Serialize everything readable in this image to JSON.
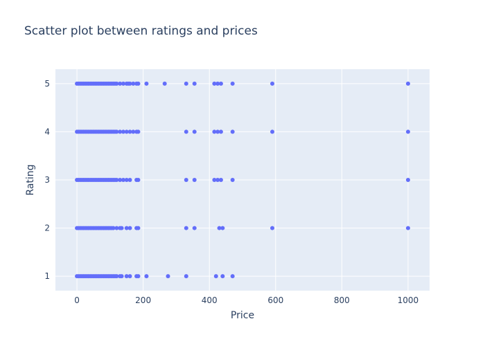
{
  "chart_data": {
    "type": "scatter",
    "title": "Scatter plot between ratings and prices",
    "xlabel": "Price",
    "ylabel": "Rating",
    "xlim": [
      -65,
      1065
    ],
    "ylim": [
      0.7,
      5.3
    ],
    "xticks": [
      0,
      200,
      400,
      600,
      800,
      1000
    ],
    "yticks": [
      1,
      2,
      3,
      4,
      5
    ],
    "xtick_labels": [
      "0",
      "200",
      "400",
      "600",
      "800",
      "1000"
    ],
    "ytick_labels": [
      "1",
      "2",
      "3",
      "4",
      "5"
    ],
    "grid": true,
    "marker_color": "#636efa",
    "plot_bg": "#e5ecf6",
    "x": [
      0,
      5,
      10,
      15,
      20,
      25,
      30,
      35,
      40,
      45,
      50,
      55,
      60,
      65,
      70,
      75,
      80,
      85,
      90,
      95,
      100,
      105,
      110,
      115,
      120,
      130,
      140,
      150,
      155,
      160,
      170,
      180,
      185,
      210,
      265,
      330,
      355,
      415,
      425,
      435,
      470,
      590,
      1000,
      0,
      5,
      10,
      15,
      20,
      25,
      30,
      35,
      40,
      45,
      50,
      55,
      60,
      65,
      70,
      75,
      80,
      85,
      90,
      95,
      100,
      105,
      110,
      115,
      120,
      130,
      140,
      150,
      160,
      170,
      180,
      185,
      330,
      355,
      415,
      425,
      435,
      470,
      590,
      1000,
      0,
      5,
      10,
      15,
      20,
      25,
      30,
      35,
      40,
      45,
      50,
      55,
      60,
      65,
      70,
      75,
      80,
      85,
      90,
      95,
      100,
      105,
      110,
      115,
      120,
      130,
      140,
      150,
      160,
      180,
      185,
      330,
      355,
      415,
      425,
      435,
      470,
      1000,
      0,
      5,
      10,
      15,
      20,
      25,
      30,
      35,
      40,
      45,
      50,
      55,
      60,
      65,
      70,
      75,
      80,
      85,
      90,
      95,
      100,
      105,
      110,
      120,
      130,
      135,
      150,
      160,
      180,
      185,
      330,
      355,
      430,
      440,
      590,
      1000,
      0,
      5,
      10,
      15,
      20,
      25,
      30,
      35,
      40,
      45,
      50,
      55,
      60,
      65,
      70,
      75,
      80,
      85,
      90,
      95,
      100,
      105,
      110,
      115,
      120,
      130,
      135,
      150,
      160,
      180,
      185,
      210,
      275,
      330,
      420,
      440,
      470
    ],
    "y": [
      5,
      5,
      5,
      5,
      5,
      5,
      5,
      5,
      5,
      5,
      5,
      5,
      5,
      5,
      5,
      5,
      5,
      5,
      5,
      5,
      5,
      5,
      5,
      5,
      5,
      5,
      5,
      5,
      5,
      5,
      5,
      5,
      5,
      5,
      5,
      5,
      5,
      5,
      5,
      5,
      5,
      5,
      5,
      4,
      4,
      4,
      4,
      4,
      4,
      4,
      4,
      4,
      4,
      4,
      4,
      4,
      4,
      4,
      4,
      4,
      4,
      4,
      4,
      4,
      4,
      4,
      4,
      4,
      4,
      4,
      4,
      4,
      4,
      4,
      4,
      4,
      4,
      4,
      4,
      4,
      4,
      4,
      4,
      3,
      3,
      3,
      3,
      3,
      3,
      3,
      3,
      3,
      3,
      3,
      3,
      3,
      3,
      3,
      3,
      3,
      3,
      3,
      3,
      3,
      3,
      3,
      3,
      3,
      3,
      3,
      3,
      3,
      3,
      3,
      3,
      3,
      3,
      3,
      3,
      3,
      3,
      2,
      2,
      2,
      2,
      2,
      2,
      2,
      2,
      2,
      2,
      2,
      2,
      2,
      2,
      2,
      2,
      2,
      2,
      2,
      2,
      2,
      2,
      2,
      2,
      2,
      2,
      2,
      2,
      2,
      2,
      2,
      2,
      2,
      2,
      2,
      2,
      1,
      1,
      1,
      1,
      1,
      1,
      1,
      1,
      1,
      1,
      1,
      1,
      1,
      1,
      1,
      1,
      1,
      1,
      1,
      1,
      1,
      1,
      1,
      1,
      1,
      1,
      1,
      1,
      1,
      1,
      1,
      1,
      1,
      1,
      1,
      1,
      1
    ]
  }
}
